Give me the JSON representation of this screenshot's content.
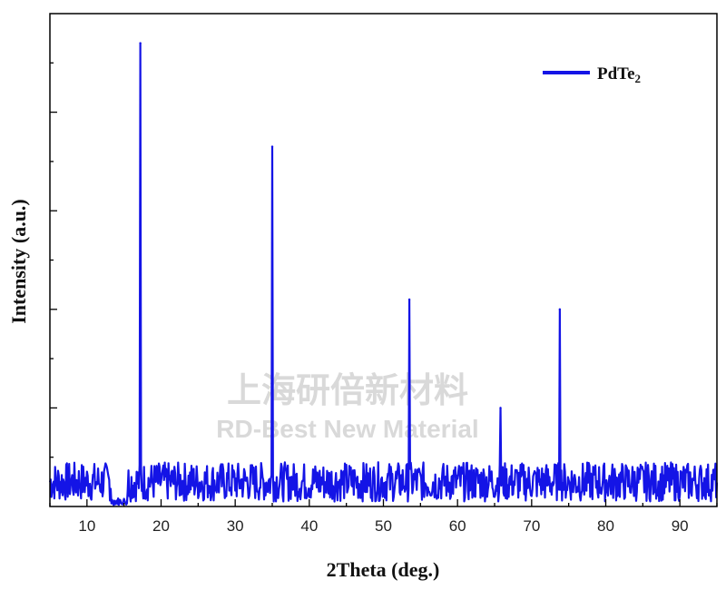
{
  "chart_data": {
    "type": "line",
    "xlabel": "2Theta (deg.)",
    "ylabel": "Intensity (a.u.)",
    "xlim": [
      5,
      95
    ],
    "ylim": [
      0,
      100
    ],
    "x_ticks": [
      10,
      20,
      30,
      40,
      50,
      60,
      70,
      80,
      90
    ],
    "y_tick_labels_shown": false,
    "legend_position": "top-right",
    "series": [
      {
        "name": "PdTe2",
        "color": "#1414e6",
        "baseline_noise_range": [
          1,
          9
        ],
        "peaks": [
          {
            "x": 17.2,
            "y": 94
          },
          {
            "x": 35.0,
            "y": 73
          },
          {
            "x": 53.5,
            "y": 42
          },
          {
            "x": 65.8,
            "y": 20
          },
          {
            "x": 73.8,
            "y": 40
          }
        ]
      }
    ]
  },
  "legend": {
    "label_main": "PdTe",
    "label_sub": "2"
  },
  "watermark": {
    "line1": "上海研倍新材料",
    "line2": "RD-Best New Material"
  }
}
